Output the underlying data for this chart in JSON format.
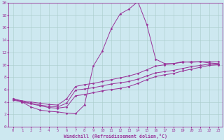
{
  "xlabel": "Windchill (Refroidissement éolien,°C)",
  "xlim": [
    -0.5,
    23.5
  ],
  "ylim": [
    0,
    20
  ],
  "xticks": [
    0,
    1,
    2,
    3,
    4,
    5,
    6,
    7,
    8,
    9,
    10,
    11,
    12,
    13,
    14,
    15,
    16,
    17,
    18,
    19,
    20,
    21,
    22,
    23
  ],
  "yticks": [
    0,
    2,
    4,
    6,
    8,
    10,
    12,
    14,
    16,
    18,
    20
  ],
  "background_color": "#cde8f0",
  "line_color": "#993399",
  "grid_color": "#aacccc",
  "line1_x": [
    0,
    1,
    2,
    3,
    4,
    5,
    6,
    7,
    8,
    9,
    10,
    11,
    12,
    13,
    14,
    15,
    16,
    17,
    18,
    19,
    20,
    21,
    22,
    23
  ],
  "line1_y": [
    4.5,
    4.0,
    3.2,
    2.7,
    2.5,
    2.4,
    2.2,
    2.1,
    3.5,
    9.8,
    12.2,
    15.8,
    18.2,
    19.0,
    20.2,
    16.5,
    10.9,
    10.2,
    10.2,
    10.5,
    10.4,
    10.5,
    10.3,
    10.2
  ],
  "line2_x": [
    0,
    1,
    2,
    3,
    4,
    5,
    6,
    7,
    8,
    9,
    10,
    11,
    12,
    13,
    14,
    15,
    16,
    17,
    18,
    19,
    20,
    21,
    22,
    23
  ],
  "line2_y": [
    4.5,
    4.2,
    4.0,
    3.8,
    3.6,
    3.5,
    4.5,
    6.5,
    6.8,
    7.0,
    7.3,
    7.6,
    7.9,
    8.2,
    8.6,
    9.2,
    9.8,
    10.0,
    10.2,
    10.4,
    10.5,
    10.5,
    10.5,
    10.5
  ],
  "line3_x": [
    0,
    1,
    2,
    3,
    4,
    5,
    6,
    7,
    8,
    9,
    10,
    11,
    12,
    13,
    14,
    15,
    16,
    17,
    18,
    19,
    20,
    21,
    22,
    23
  ],
  "line3_y": [
    4.4,
    4.1,
    3.8,
    3.5,
    3.3,
    3.2,
    3.8,
    5.9,
    6.1,
    6.3,
    6.6,
    6.9,
    7.1,
    7.3,
    7.7,
    8.2,
    8.7,
    8.9,
    9.1,
    9.4,
    9.7,
    9.9,
    10.1,
    10.1
  ],
  "line4_x": [
    0,
    1,
    2,
    3,
    4,
    5,
    6,
    7,
    8,
    9,
    10,
    11,
    12,
    13,
    14,
    15,
    16,
    17,
    18,
    19,
    20,
    21,
    22,
    23
  ],
  "line4_y": [
    4.3,
    4.0,
    3.7,
    3.4,
    3.1,
    3.0,
    3.2,
    5.0,
    5.2,
    5.5,
    5.8,
    6.0,
    6.2,
    6.5,
    7.0,
    7.6,
    8.1,
    8.4,
    8.6,
    9.0,
    9.3,
    9.6,
    9.9,
    10.0
  ]
}
